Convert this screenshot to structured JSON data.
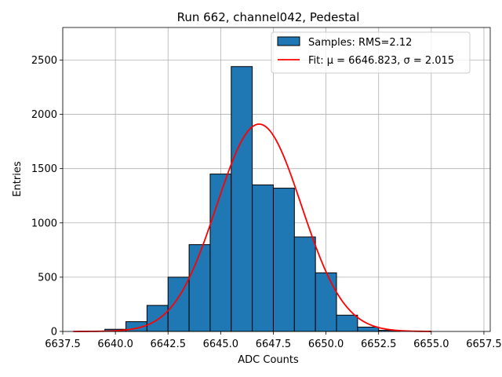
{
  "chart_data": {
    "type": "bar",
    "title": "Run 662, channel042, Pedestal",
    "xlabel": "ADC Counts",
    "ylabel": "Entries",
    "xlim": [
      6637.5,
      6657.8
    ],
    "ylim": [
      0,
      2800
    ],
    "xticks": [
      6637.5,
      6640.0,
      6642.5,
      6645.0,
      6647.5,
      6650.0,
      6652.5,
      6655.0,
      6657.5
    ],
    "xtick_labels": [
      "6637.5",
      "6640.0",
      "6642.5",
      "6645.0",
      "6647.5",
      "6650.0",
      "6652.5",
      "6655.0",
      "6657.5"
    ],
    "yticks": [
      0,
      500,
      1000,
      1500,
      2000,
      2500
    ],
    "ytick_labels": [
      "0",
      "500",
      "1000",
      "1500",
      "2000",
      "2500"
    ],
    "grid": true,
    "legend_position": "top-right",
    "histogram": {
      "name": "Samples: RMS=2.12",
      "color": "#1f77b4",
      "edge_color": "#000000",
      "bin_edges": [
        6639.5,
        6640.5,
        6641.5,
        6642.5,
        6643.5,
        6644.5,
        6645.5,
        6646.5,
        6647.5,
        6648.5,
        6649.5,
        6650.5,
        6651.5,
        6652.5,
        6653.5
      ],
      "counts": [
        20,
        90,
        240,
        500,
        800,
        1450,
        2440,
        1350,
        1320,
        870,
        540,
        150,
        40,
        10
      ]
    },
    "fit": {
      "name": "Fit: μ = 6646.823, σ = 2.015",
      "color": "#ff0000",
      "mu": 6646.823,
      "sigma": 2.015,
      "amplitude": 1910,
      "x_range": [
        6638.0,
        6655.0
      ]
    }
  }
}
